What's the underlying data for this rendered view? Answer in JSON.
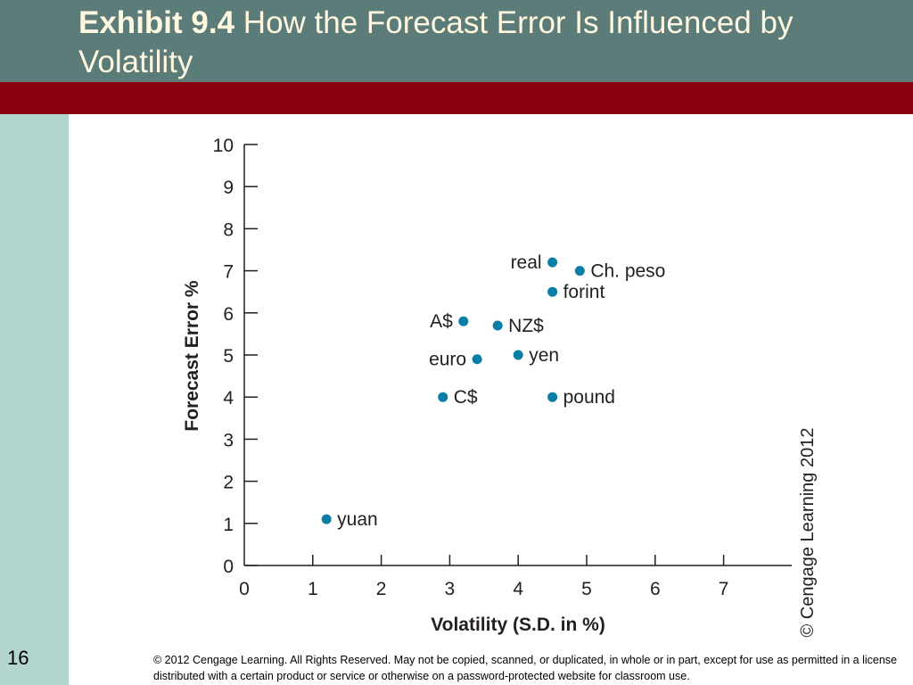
{
  "slide": {
    "title_bold": "Exhibit 9.4",
    "title_rest": " How the Forecast Error Is Influenced by Volatility",
    "number": "16",
    "copyright": "© 2012 Cengage Learning. All Rights Reserved. May not be copied, scanned, or duplicated, in whole or in part, except for use as permitted in a license distributed with a certain product or service or otherwise on a password-protected website for classroom use."
  },
  "colors": {
    "header": "#5b7c79",
    "accent_bar": "#8b0011",
    "side_bar": "#b3d6d0",
    "point": "#0a7ea4",
    "title_text": "#fff7df"
  },
  "chart_data": {
    "type": "scatter",
    "xlabel": "Volatility (S.D. in %)",
    "ylabel": "Forecast Error %",
    "xlim": [
      0,
      8
    ],
    "ylim": [
      0,
      10
    ],
    "xticks": [
      0,
      1,
      2,
      3,
      4,
      5,
      6,
      7
    ],
    "yticks": [
      0,
      1,
      2,
      3,
      4,
      5,
      6,
      7,
      8,
      9,
      10
    ],
    "grid": false,
    "source_note": "© Cengage Learning 2012",
    "points": [
      {
        "label": "real",
        "x": 4.5,
        "y": 7.2
      },
      {
        "label": "Ch. peso",
        "x": 4.9,
        "y": 7.0
      },
      {
        "label": "forint",
        "x": 4.5,
        "y": 6.5
      },
      {
        "label": "A$",
        "x": 3.2,
        "y": 5.8
      },
      {
        "label": "NZ$",
        "x": 3.7,
        "y": 5.7
      },
      {
        "label": "euro",
        "x": 3.4,
        "y": 4.9
      },
      {
        "label": "yen",
        "x": 4.0,
        "y": 5.0
      },
      {
        "label": "C$",
        "x": 2.9,
        "y": 4.0
      },
      {
        "label": "pound",
        "x": 4.5,
        "y": 4.0
      },
      {
        "label": "yuan",
        "x": 1.2,
        "y": 1.1
      }
    ]
  }
}
